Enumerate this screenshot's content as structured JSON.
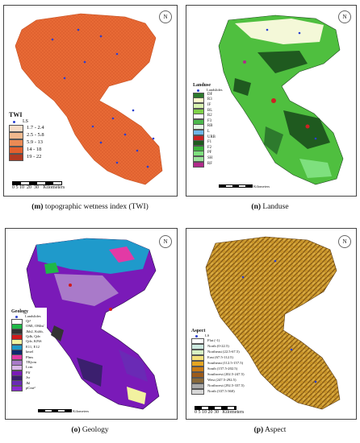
{
  "panels": {
    "twi": {
      "caption_letter": "(m)",
      "caption_text": "topographic wetness index (TWI)",
      "legend_title": "TWI",
      "ls_label": "LS",
      "classes": [
        {
          "label": "1.7 - 2.4",
          "color": "#f6dcc8"
        },
        {
          "label": "2.5 - 5.8",
          "color": "#f0b98e"
        },
        {
          "label": "5.9 - 13",
          "color": "#ea8a55"
        },
        {
          "label": "14 - 18",
          "color": "#e2602e"
        },
        {
          "label": "19 - 22",
          "color": "#b23a22"
        }
      ],
      "scale_label": "Kilometers",
      "scale_ticks": [
        "0",
        "5 10",
        "20",
        "30"
      ]
    },
    "landuse": {
      "caption_letter": "(n)",
      "caption_text": "Landuse",
      "legend_title": "Landuse",
      "ls_label": "Landslides",
      "classes": [
        {
          "label": "DF",
          "color": "#2d7a2d"
        },
        {
          "label": "R3",
          "color": "#ffffcc"
        },
        {
          "label": "IF",
          "color": "#d8f2b0"
        },
        {
          "label": "BL",
          "color": "#7fd24a"
        },
        {
          "label": "R2",
          "color": "#ffffff"
        },
        {
          "label": "F3",
          "color": "#4bb84b"
        },
        {
          "label": "RB",
          "color": "#e5f7e5"
        },
        {
          "label": "L",
          "color": "#6fb7e8"
        },
        {
          "label": "URB",
          "color": "#cc2222"
        },
        {
          "label": "F1",
          "color": "#1f5a1f"
        },
        {
          "label": "F2",
          "color": "#3cb43c"
        },
        {
          "label": "PF",
          "color": "#7ee07e"
        },
        {
          "label": "SH",
          "color": "#9be39b"
        },
        {
          "label": "RF",
          "color": "#b02a8a"
        }
      ],
      "scale_label": "Kilometers"
    },
    "geology": {
      "caption_letter": "(o)",
      "caption_text": "Geology",
      "legend_title": "Geology",
      "ls_label": "Landslides",
      "classes": [
        {
          "label": "Qt²",
          "color": "#ffffff"
        },
        {
          "label": "OMl, OMm'",
          "color": "#1fb848"
        },
        {
          "label": "Jkb2, Kshb,",
          "color": "#333333"
        },
        {
          "label": "Qdb, Qdv",
          "color": "#d01a1a"
        },
        {
          "label": "Qdv, KPiS",
          "color": "#f2f2a0"
        },
        {
          "label": "E11, E12",
          "color": "#1f9acb"
        },
        {
          "label": "kmel",
          "color": "#0f2a6e"
        },
        {
          "label": "Plms",
          "color": "#e23aa5"
        },
        {
          "label": "TRjvm",
          "color": "#a97ac9"
        },
        {
          "label": "Lcm",
          "color": "#d9b8e8"
        },
        {
          "label": "Plf",
          "color": "#7a1ab8"
        },
        {
          "label": "Jsr",
          "color": "#3b1f6e"
        },
        {
          "label": "Jkl",
          "color": "#6a2ab5"
        },
        {
          "label": "pCmt²",
          "color": "#8a2ad0"
        }
      ],
      "scale_label": "Kilometers"
    },
    "aspect": {
      "caption_letter": "(p)",
      "caption_text": "Aspect",
      "legend_title": "Aspect",
      "ls_label": "LS",
      "classes": [
        {
          "label": "Flat (-1)",
          "color": "#ffffff"
        },
        {
          "label": "North (0-22.5)",
          "color": "#cdeae0"
        },
        {
          "label": "Northeast (22.5-67.5)",
          "color": "#d9f2c4"
        },
        {
          "label": "East (67.5-112.5)",
          "color": "#f3e07a"
        },
        {
          "label": "Southeast (112.5-157.5)",
          "color": "#e5a522"
        },
        {
          "label": "South (157.5-202.5)",
          "color": "#c97a14"
        },
        {
          "label": "Southwest (202.5-247.5)",
          "color": "#9c5a1a"
        },
        {
          "label": "West (247.5-292.5)",
          "color": "#8a6a3a"
        },
        {
          "label": "Northwest (292.5-337.5)",
          "color": "#aaaaaa"
        },
        {
          "label": "North (337.5-360)",
          "color": "#d7d7d7"
        }
      ],
      "scale_label": "Kilometers",
      "scale_ticks": [
        "0",
        "5 10",
        "20",
        "30"
      ]
    }
  }
}
